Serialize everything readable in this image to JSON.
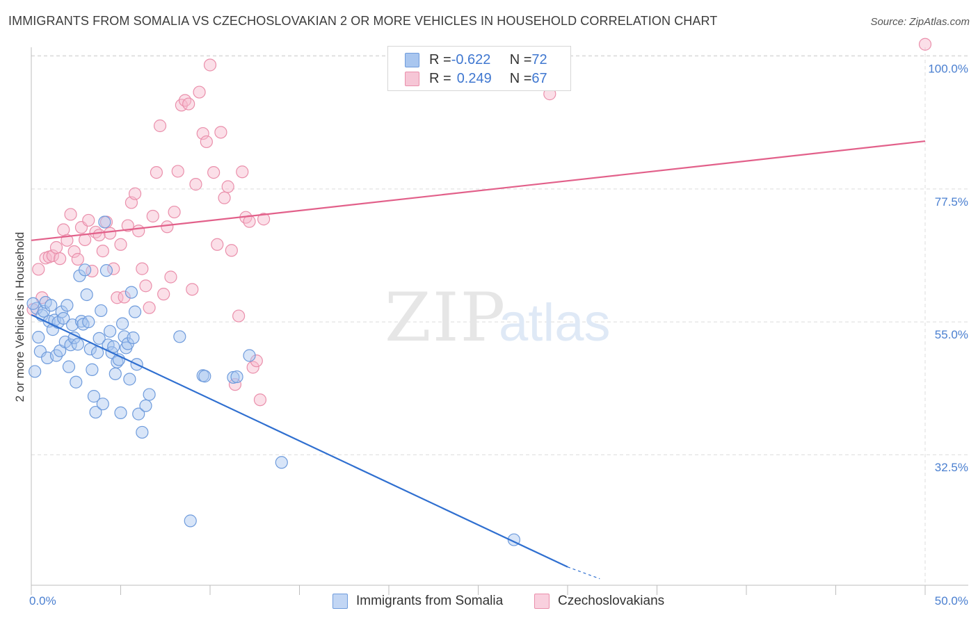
{
  "title": "IMMIGRANTS FROM SOMALIA VS CZECHOSLOVAKIAN 2 OR MORE VEHICLES IN HOUSEHOLD CORRELATION CHART",
  "source": "Source: ZipAtlas.com",
  "watermark": {
    "zip": "ZIP",
    "atlas": "atlas"
  },
  "legend": {
    "rows": [
      {
        "r_label": "R = ",
        "r_value": "-0.622",
        "n_label": "N = ",
        "n_value": "72"
      },
      {
        "r_label": "R = ",
        "r_value": "0.249",
        "n_label": "N = ",
        "n_value": "67"
      }
    ]
  },
  "colors": {
    "blue_fill": "#a9c6ef",
    "blue_stroke": "#6e9bdc",
    "blue_line": "#2f6fd0",
    "pink_fill": "#f6b9cc",
    "pink_stroke": "#ea8fab",
    "pink_line": "#e2608a",
    "grid": "#dcdcdc",
    "tick_text": "#4a7fd0"
  },
  "chart_data": {
    "type": "scatter",
    "title": "IMMIGRANTS FROM SOMALIA VS CZECHOSLOVAKIAN 2 OR MORE VEHICLES IN HOUSEHOLD CORRELATION CHART",
    "xlabel": "",
    "ylabel": "2 or more Vehicles in Household",
    "xlim": [
      0,
      50
    ],
    "ylim": [
      10.4,
      101.5
    ],
    "x_tick_labels": [
      "0.0%",
      "50.0%"
    ],
    "y_ticks": [
      32.5,
      55.0,
      77.5,
      100.0
    ],
    "y_tick_labels": [
      "32.5%",
      "55.0%",
      "77.5%",
      "100.0%"
    ],
    "grid": true,
    "legend_position": "bottom-center",
    "series": [
      {
        "name": "Immigrants from Somalia",
        "color": "#a9c6ef",
        "r": -0.622,
        "n": 72,
        "trend": {
          "x": [
            0,
            30
          ],
          "y": [
            56.2,
            13.5
          ],
          "dashed_extension_to": [
            31.8,
            11.5
          ]
        },
        "points": [
          [
            0.2,
            46.6
          ],
          [
            0.3,
            57.3
          ],
          [
            0.4,
            52.4
          ],
          [
            0.5,
            50.0
          ],
          [
            0.6,
            56.1
          ],
          [
            0.7,
            56.8
          ],
          [
            0.8,
            58.3
          ],
          [
            0.9,
            48.9
          ],
          [
            1.0,
            55.1
          ],
          [
            1.1,
            57.8
          ],
          [
            1.2,
            53.7
          ],
          [
            1.3,
            55.3
          ],
          [
            1.4,
            49.3
          ],
          [
            1.5,
            54.9
          ],
          [
            1.6,
            50.1
          ],
          [
            1.7,
            56.7
          ],
          [
            1.8,
            55.6
          ],
          [
            1.9,
            51.6
          ],
          [
            2.0,
            57.8
          ],
          [
            2.1,
            47.4
          ],
          [
            2.2,
            51.1
          ],
          [
            2.3,
            54.5
          ],
          [
            2.4,
            52.3
          ],
          [
            2.5,
            44.8
          ],
          [
            2.6,
            51.2
          ],
          [
            2.7,
            62.8
          ],
          [
            2.8,
            55.1
          ],
          [
            2.9,
            54.6
          ],
          [
            3.0,
            63.8
          ],
          [
            3.1,
            59.6
          ],
          [
            3.2,
            55.0
          ],
          [
            3.3,
            50.4
          ],
          [
            3.4,
            46.9
          ],
          [
            3.5,
            42.4
          ],
          [
            3.6,
            39.7
          ],
          [
            3.7,
            49.8
          ],
          [
            3.8,
            52.2
          ],
          [
            3.9,
            56.9
          ],
          [
            4.0,
            41.1
          ],
          [
            4.1,
            71.9
          ],
          [
            4.2,
            63.7
          ],
          [
            4.3,
            51.1
          ],
          [
            4.4,
            53.4
          ],
          [
            4.5,
            49.8
          ],
          [
            4.6,
            50.8
          ],
          [
            4.7,
            46.2
          ],
          [
            4.8,
            48.2
          ],
          [
            4.9,
            48.6
          ],
          [
            5.0,
            39.6
          ],
          [
            5.1,
            54.7
          ],
          [
            5.2,
            52.5
          ],
          [
            5.3,
            50.6
          ],
          [
            5.4,
            51.3
          ],
          [
            5.5,
            45.3
          ],
          [
            5.6,
            60.0
          ],
          [
            5.7,
            52.3
          ],
          [
            5.8,
            56.7
          ],
          [
            5.9,
            47.8
          ],
          [
            6.0,
            39.4
          ],
          [
            6.2,
            36.3
          ],
          [
            6.4,
            40.8
          ],
          [
            6.6,
            42.7
          ],
          [
            8.3,
            52.5
          ],
          [
            8.9,
            21.3
          ],
          [
            9.6,
            45.9
          ],
          [
            9.7,
            45.8
          ],
          [
            11.3,
            45.6
          ],
          [
            11.5,
            45.7
          ],
          [
            12.2,
            49.3
          ],
          [
            14.0,
            31.2
          ],
          [
            27.0,
            18.1
          ],
          [
            0.1,
            58.1
          ]
        ]
      },
      {
        "name": "Czechoslovakians",
        "color": "#f6b9cc",
        "r": 0.249,
        "n": 67,
        "trend": {
          "x": [
            0,
            50
          ],
          "y": [
            68.8,
            85.6
          ]
        },
        "points": [
          [
            0.1,
            57.1
          ],
          [
            0.4,
            63.9
          ],
          [
            0.6,
            59.1
          ],
          [
            0.8,
            65.8
          ],
          [
            1.0,
            66.0
          ],
          [
            1.2,
            66.2
          ],
          [
            1.4,
            67.6
          ],
          [
            1.6,
            65.7
          ],
          [
            1.8,
            70.6
          ],
          [
            2.0,
            68.8
          ],
          [
            2.2,
            73.2
          ],
          [
            2.4,
            66.9
          ],
          [
            2.6,
            65.6
          ],
          [
            2.8,
            71.0
          ],
          [
            3.0,
            68.9
          ],
          [
            3.2,
            72.2
          ],
          [
            3.4,
            63.6
          ],
          [
            3.6,
            70.2
          ],
          [
            3.8,
            69.7
          ],
          [
            4.0,
            67.0
          ],
          [
            4.2,
            71.9
          ],
          [
            4.4,
            70.0
          ],
          [
            4.6,
            64.0
          ],
          [
            4.8,
            59.1
          ],
          [
            5.0,
            68.1
          ],
          [
            5.2,
            59.2
          ],
          [
            5.4,
            71.3
          ],
          [
            5.6,
            75.2
          ],
          [
            5.8,
            76.7
          ],
          [
            6.0,
            70.4
          ],
          [
            6.2,
            64.0
          ],
          [
            6.4,
            61.1
          ],
          [
            6.6,
            57.4
          ],
          [
            6.8,
            72.9
          ],
          [
            7.0,
            80.3
          ],
          [
            7.2,
            88.2
          ],
          [
            7.4,
            59.7
          ],
          [
            7.6,
            71.1
          ],
          [
            7.8,
            62.6
          ],
          [
            8.0,
            73.6
          ],
          [
            8.2,
            80.5
          ],
          [
            8.4,
            91.7
          ],
          [
            8.6,
            92.5
          ],
          [
            8.8,
            91.9
          ],
          [
            9.0,
            60.5
          ],
          [
            9.2,
            78.3
          ],
          [
            9.4,
            93.9
          ],
          [
            9.6,
            86.9
          ],
          [
            9.8,
            85.5
          ],
          [
            10.0,
            98.5
          ],
          [
            10.2,
            80.3
          ],
          [
            10.4,
            68.1
          ],
          [
            10.6,
            87.1
          ],
          [
            10.8,
            76.0
          ],
          [
            11.0,
            77.9
          ],
          [
            11.2,
            67.1
          ],
          [
            11.4,
            44.4
          ],
          [
            11.6,
            56.0
          ],
          [
            11.8,
            80.4
          ],
          [
            12.0,
            72.7
          ],
          [
            12.2,
            72.0
          ],
          [
            12.4,
            47.3
          ],
          [
            12.6,
            48.4
          ],
          [
            12.8,
            41.8
          ],
          [
            13.0,
            72.4
          ],
          [
            29.0,
            93.6
          ],
          [
            50.0,
            102.0
          ]
        ]
      }
    ]
  },
  "bottom_legend": {
    "items": [
      {
        "label": "Immigrants from Somalia"
      },
      {
        "label": "Czechoslovakians"
      }
    ]
  }
}
